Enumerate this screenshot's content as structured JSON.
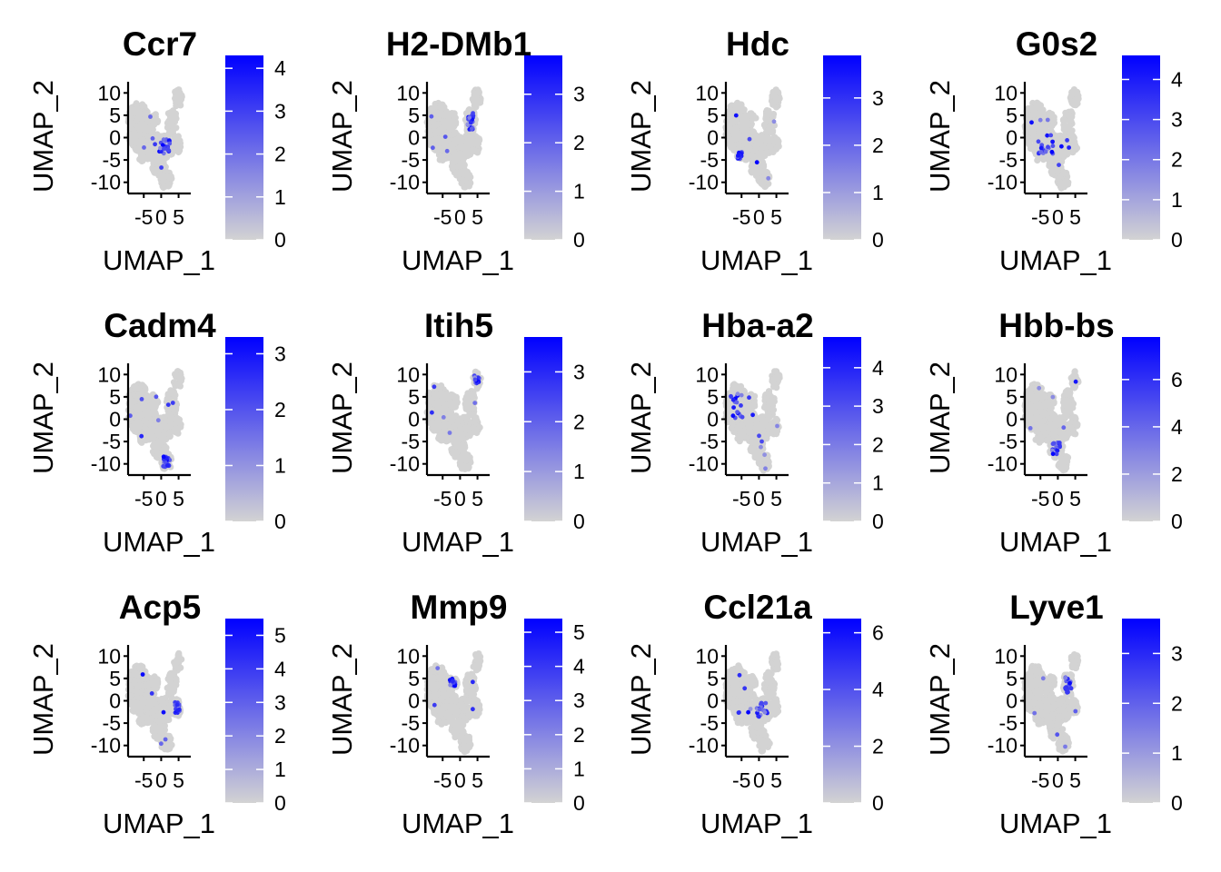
{
  "chart_data": [
    {
      "type": "scatter",
      "title": "Ccr7",
      "xlabel": "UMAP_1",
      "ylabel": "UMAP_2",
      "xticks": [
        "-5",
        "0",
        "5"
      ],
      "yticks": [
        "10",
        "5",
        "0",
        "-5",
        "-10"
      ],
      "colorbar": {
        "min": 0,
        "max": 4.3,
        "ticks": [
          "0",
          "1",
          "2",
          "3",
          "4"
        ],
        "tickvalues": [
          0,
          1,
          2,
          3,
          4
        ],
        "low_color": "#d3d3d3",
        "high_color": "#0000ff"
      }
    },
    {
      "type": "scatter",
      "title": "H2-DMb1",
      "xlabel": "UMAP_1",
      "ylabel": "UMAP_2",
      "xticks": [
        "-5",
        "0",
        "5"
      ],
      "yticks": [
        "10",
        "5",
        "0",
        "-5",
        "-10"
      ],
      "colorbar": {
        "min": 0,
        "max": 3.8,
        "ticks": [
          "0",
          "1",
          "2",
          "3"
        ],
        "tickvalues": [
          0,
          1,
          2,
          3
        ],
        "low_color": "#d3d3d3",
        "high_color": "#0000ff"
      }
    },
    {
      "type": "scatter",
      "title": "Hdc",
      "xlabel": "UMAP_1",
      "ylabel": "UMAP_2",
      "xticks": [
        "-5",
        "0",
        "5"
      ],
      "yticks": [
        "10",
        "5",
        "0",
        "-5",
        "-10"
      ],
      "colorbar": {
        "min": 0,
        "max": 3.9,
        "ticks": [
          "0",
          "1",
          "2",
          "3"
        ],
        "tickvalues": [
          0,
          1,
          2,
          3
        ],
        "low_color": "#d3d3d3",
        "high_color": "#0000ff"
      }
    },
    {
      "type": "scatter",
      "title": "G0s2",
      "xlabel": "UMAP_1",
      "ylabel": "UMAP_2",
      "xticks": [
        "-5",
        "0",
        "5"
      ],
      "yticks": [
        "10",
        "5",
        "0",
        "-5",
        "-10"
      ],
      "colorbar": {
        "min": 0,
        "max": 4.6,
        "ticks": [
          "0",
          "1",
          "2",
          "3",
          "4"
        ],
        "tickvalues": [
          0,
          1,
          2,
          3,
          4
        ],
        "low_color": "#d3d3d3",
        "high_color": "#0000ff"
      }
    },
    {
      "type": "scatter",
      "title": "Cadm4",
      "xlabel": "UMAP_1",
      "ylabel": "UMAP_2",
      "xticks": [
        "-5",
        "0",
        "5"
      ],
      "yticks": [
        "10",
        "5",
        "0",
        "-5",
        "-10"
      ],
      "colorbar": {
        "min": 0,
        "max": 3.3,
        "ticks": [
          "0",
          "1",
          "2",
          "3"
        ],
        "tickvalues": [
          0,
          1,
          2,
          3
        ],
        "low_color": "#d3d3d3",
        "high_color": "#0000ff"
      }
    },
    {
      "type": "scatter",
      "title": "Itih5",
      "xlabel": "UMAP_1",
      "ylabel": "UMAP_2",
      "xticks": [
        "-5",
        "0",
        "5"
      ],
      "yticks": [
        "10",
        "5",
        "0",
        "-5",
        "-10"
      ],
      "colorbar": {
        "min": 0,
        "max": 3.7,
        "ticks": [
          "0",
          "1",
          "2",
          "3"
        ],
        "tickvalues": [
          0,
          1,
          2,
          3
        ],
        "low_color": "#d3d3d3",
        "high_color": "#0000ff"
      }
    },
    {
      "type": "scatter",
      "title": "Hba-a2",
      "xlabel": "UMAP_1",
      "ylabel": "UMAP_2",
      "xticks": [
        "-5",
        "0",
        "5"
      ],
      "yticks": [
        "10",
        "5",
        "0",
        "-5",
        "-10"
      ],
      "colorbar": {
        "min": 0,
        "max": 4.8,
        "ticks": [
          "0",
          "1",
          "2",
          "3",
          "4"
        ],
        "tickvalues": [
          0,
          1,
          2,
          3,
          4
        ],
        "low_color": "#d3d3d3",
        "high_color": "#0000ff"
      }
    },
    {
      "type": "scatter",
      "title": "Hbb-bs",
      "xlabel": "UMAP_1",
      "ylabel": "UMAP_2",
      "xticks": [
        "-5",
        "0",
        "5"
      ],
      "yticks": [
        "10",
        "5",
        "0",
        "-5",
        "-10"
      ],
      "colorbar": {
        "min": 0,
        "max": 7.8,
        "ticks": [
          "0",
          "2",
          "4",
          "6"
        ],
        "tickvalues": [
          0,
          2,
          4,
          6
        ],
        "low_color": "#d3d3d3",
        "high_color": "#0000ff"
      }
    },
    {
      "type": "scatter",
      "title": "Acp5",
      "xlabel": "UMAP_1",
      "ylabel": "UMAP_2",
      "xticks": [
        "-5",
        "0",
        "5"
      ],
      "yticks": [
        "10",
        "5",
        "0",
        "-5",
        "-10"
      ],
      "colorbar": {
        "min": 0,
        "max": 5.5,
        "ticks": [
          "0",
          "1",
          "2",
          "3",
          "4",
          "5"
        ],
        "tickvalues": [
          0,
          1,
          2,
          3,
          4,
          5
        ],
        "low_color": "#d3d3d3",
        "high_color": "#0000ff"
      }
    },
    {
      "type": "scatter",
      "title": "Mmp9",
      "xlabel": "UMAP_1",
      "ylabel": "UMAP_2",
      "xticks": [
        "-5",
        "0",
        "5"
      ],
      "yticks": [
        "10",
        "5",
        "0",
        "-5",
        "-10"
      ],
      "colorbar": {
        "min": 0,
        "max": 5.4,
        "ticks": [
          "0",
          "1",
          "2",
          "3",
          "4",
          "5"
        ],
        "tickvalues": [
          0,
          1,
          2,
          3,
          4,
          5
        ],
        "low_color": "#d3d3d3",
        "high_color": "#0000ff"
      }
    },
    {
      "type": "scatter",
      "title": "Ccl21a",
      "xlabel": "UMAP_1",
      "ylabel": "UMAP_2",
      "xticks": [
        "-5",
        "0",
        "5"
      ],
      "yticks": [
        "10",
        "5",
        "0",
        "-5",
        "-10"
      ],
      "colorbar": {
        "min": 0,
        "max": 6.5,
        "ticks": [
          "0",
          "2",
          "4",
          "6"
        ],
        "tickvalues": [
          0,
          2,
          4,
          6
        ],
        "low_color": "#d3d3d3",
        "high_color": "#0000ff"
      }
    },
    {
      "type": "scatter",
      "title": "Lyve1",
      "xlabel": "UMAP_1",
      "ylabel": "UMAP_2",
      "xticks": [
        "-5",
        "0",
        "5"
      ],
      "yticks": [
        "10",
        "5",
        "0",
        "-5",
        "-10"
      ],
      "colorbar": {
        "min": 0,
        "max": 3.7,
        "ticks": [
          "0",
          "1",
          "2",
          "3"
        ],
        "tickvalues": [
          0,
          1,
          2,
          3
        ],
        "low_color": "#d3d3d3",
        "high_color": "#0000ff"
      }
    }
  ]
}
